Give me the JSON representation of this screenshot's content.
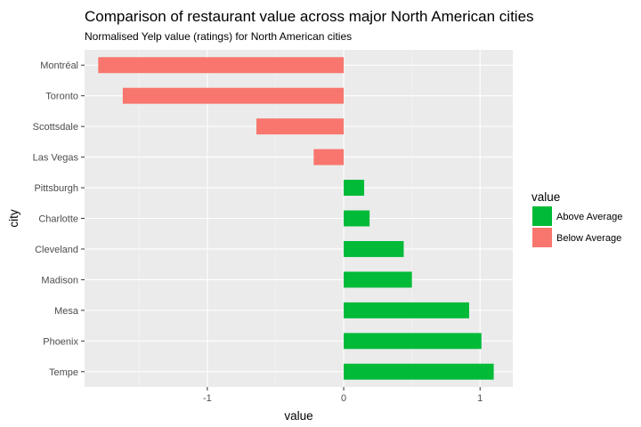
{
  "chart_data": {
    "type": "bar",
    "orientation": "horizontal",
    "title": "Comparison of restaurant value across major North American cities",
    "subtitle": "Normalised Yelp value (ratings) for North American cities",
    "xlabel": "value",
    "ylabel": "city",
    "xlim": [
      -1.9,
      1.24
    ],
    "x_ticks": [
      -1,
      0,
      1
    ],
    "x_tick_labels": [
      "-1",
      "0",
      "1"
    ],
    "grid": true,
    "legend": {
      "title": "value",
      "position": "right",
      "entries": [
        {
          "label": "Above Average",
          "color": "#00BA38"
        },
        {
          "label": "Below Average",
          "color": "#F8766D"
        }
      ]
    },
    "categories": [
      "Montréal",
      "Toronto",
      "Scottsdale",
      "Las Vegas",
      "Pittsburgh",
      "Charlotte",
      "Cleveland",
      "Madison",
      "Mesa",
      "Phoenix",
      "Tempe"
    ],
    "values": [
      -1.8,
      -1.62,
      -0.64,
      -0.22,
      0.15,
      0.19,
      0.44,
      0.5,
      0.92,
      1.01,
      1.1
    ],
    "groups": [
      "Below Average",
      "Below Average",
      "Below Average",
      "Below Average",
      "Above Average",
      "Above Average",
      "Above Average",
      "Above Average",
      "Above Average",
      "Above Average",
      "Above Average"
    ]
  }
}
